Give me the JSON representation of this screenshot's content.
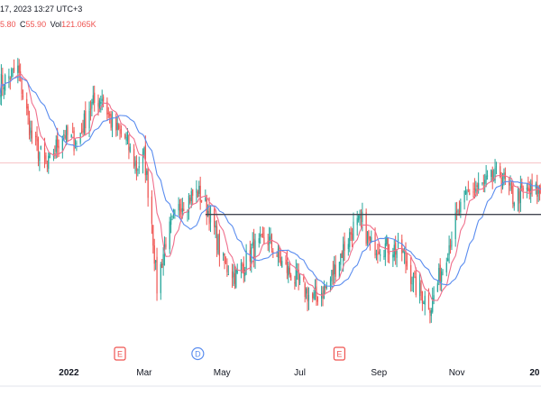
{
  "header": {
    "timestamp": "17, 2023 13:27 UTC+3",
    "ohlc_fragment_h": "5.80",
    "ohlc_label_c": "C",
    "ohlc_value_c": "55.90",
    "ohlc_label_vol": "Vol",
    "ohlc_value_vol": "121.065K"
  },
  "colors": {
    "up": "#26a69a",
    "down": "#ef5350",
    "ma_fast": "#f06f8c",
    "ma_slow": "#5b8def",
    "resistance": "#434651",
    "ref_line": "#f7c2c6",
    "axis_text": "#131722"
  },
  "events": [
    {
      "label": "E",
      "date": "2022-02-10",
      "kind": "earnings"
    },
    {
      "label": "D",
      "date": "2022-04-12",
      "kind": "dividend"
    },
    {
      "label": "E",
      "date": "2022-08-01",
      "kind": "earnings"
    }
  ],
  "chart_data": {
    "type": "candlestick",
    "x_ticks": [
      {
        "label": "2022",
        "date": "2022-01-01",
        "bold": true
      },
      {
        "label": "Mar",
        "date": "2022-03-01",
        "bold": false
      },
      {
        "label": "May",
        "date": "2022-05-01",
        "bold": false
      },
      {
        "label": "Jul",
        "date": "2022-07-01",
        "bold": false
      },
      {
        "label": "Sep",
        "date": "2022-09-01",
        "bold": false
      },
      {
        "label": "Nov",
        "date": "2022-11-01",
        "bold": false
      },
      {
        "label": "20",
        "date": "2023-01-01",
        "bold": true
      }
    ],
    "x_range": [
      "2021-11-08",
      "2023-01-06"
    ],
    "y_range": [
      40.5,
      66.5
    ],
    "grid": false,
    "resistance_level": 51.6,
    "resistance_start": "2022-04-18",
    "reference_level": 55.9,
    "anchors": [
      [
        "2021-11-08",
        62.5
      ],
      [
        "2021-11-22",
        63.7
      ],
      [
        "2021-12-03",
        58.0
      ],
      [
        "2021-12-15",
        55.5
      ],
      [
        "2021-12-27",
        58.5
      ],
      [
        "2022-01-07",
        57.5
      ],
      [
        "2022-01-17",
        60.5
      ],
      [
        "2022-01-27",
        61.5
      ],
      [
        "2022-02-04",
        59.0
      ],
      [
        "2022-02-14",
        58.0
      ],
      [
        "2022-02-23",
        55.5
      ],
      [
        "2022-03-01",
        56.5
      ],
      [
        "2022-03-07",
        51.0
      ],
      [
        "2022-03-11",
        45.5
      ],
      [
        "2022-03-18",
        49.5
      ],
      [
        "2022-03-30",
        52.5
      ],
      [
        "2022-04-12",
        53.5
      ],
      [
        "2022-04-22",
        51.5
      ],
      [
        "2022-05-02",
        47.5
      ],
      [
        "2022-05-12",
        46.5
      ],
      [
        "2022-05-24",
        48.5
      ],
      [
        "2022-06-06",
        49.5
      ],
      [
        "2022-06-17",
        47.5
      ],
      [
        "2022-06-29",
        46.0
      ],
      [
        "2022-07-11",
        44.5
      ],
      [
        "2022-07-22",
        45.5
      ],
      [
        "2022-08-03",
        48.5
      ],
      [
        "2022-08-12",
        50.5
      ],
      [
        "2022-08-19",
        51.0
      ],
      [
        "2022-08-25",
        49.0
      ],
      [
        "2022-09-07",
        49.0
      ],
      [
        "2022-09-19",
        48.5
      ],
      [
        "2022-09-30",
        45.5
      ],
      [
        "2022-10-12",
        44.0
      ],
      [
        "2022-10-20",
        47.0
      ],
      [
        "2022-10-31",
        51.0
      ],
      [
        "2022-11-10",
        53.5
      ],
      [
        "2022-11-22",
        54.0
      ],
      [
        "2022-12-05",
        55.0
      ],
      [
        "2022-12-15",
        53.0
      ],
      [
        "2022-12-27",
        53.5
      ],
      [
        "2023-01-06",
        53.5
      ]
    ]
  }
}
